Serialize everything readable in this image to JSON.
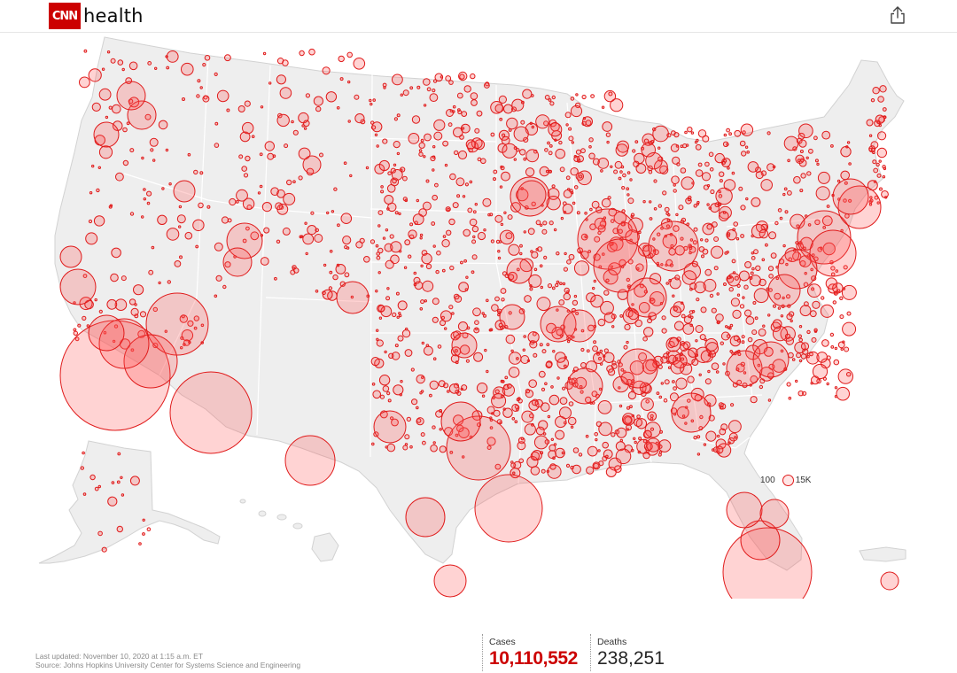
{
  "header": {
    "logo_text": "CNN",
    "section": "health",
    "share_icon": "share-icon"
  },
  "map": {
    "regions": [
      "contiguous-us",
      "alaska",
      "hawaii",
      "puerto-rico"
    ],
    "land_color": "#eeeeee",
    "bubble_stroke": "#e01b1b",
    "bubble_fill": "#ff5050"
  },
  "legend": {
    "small_label": "100",
    "large_label": "15K"
  },
  "footer": {
    "last_updated": "Last updated: November 10, 2020 at 1:15 a.m. ET",
    "source": "Source: Johns Hopkins University Center for Systems Science and Engineering"
  },
  "stats": {
    "cases_label": "Cases",
    "cases_value": "10,110,552",
    "deaths_label": "Deaths",
    "deaths_value": "238,251"
  }
}
